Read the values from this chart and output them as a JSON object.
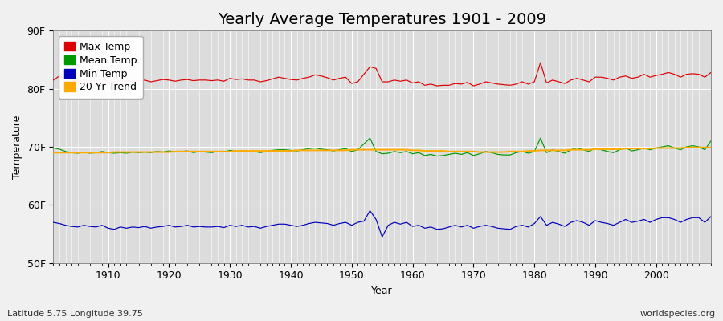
{
  "title": "Yearly Average Temperatures 1901 - 2009",
  "xlabel": "Year",
  "ylabel": "Temperature",
  "footnote_left": "Latitude 5.75 Longitude 39.75",
  "footnote_right": "worldspecies.org",
  "years": [
    1901,
    1902,
    1903,
    1904,
    1905,
    1906,
    1907,
    1908,
    1909,
    1910,
    1911,
    1912,
    1913,
    1914,
    1915,
    1916,
    1917,
    1918,
    1919,
    1920,
    1921,
    1922,
    1923,
    1924,
    1925,
    1926,
    1927,
    1928,
    1929,
    1930,
    1931,
    1932,
    1933,
    1934,
    1935,
    1936,
    1937,
    1938,
    1939,
    1940,
    1941,
    1942,
    1943,
    1944,
    1945,
    1946,
    1947,
    1948,
    1949,
    1950,
    1951,
    1952,
    1953,
    1954,
    1955,
    1956,
    1957,
    1958,
    1959,
    1960,
    1961,
    1962,
    1963,
    1964,
    1965,
    1966,
    1967,
    1968,
    1969,
    1970,
    1971,
    1972,
    1973,
    1974,
    1975,
    1976,
    1977,
    1978,
    1979,
    1980,
    1981,
    1982,
    1983,
    1984,
    1985,
    1986,
    1987,
    1988,
    1989,
    1990,
    1991,
    1992,
    1993,
    1994,
    1995,
    1996,
    1997,
    1998,
    1999,
    2000,
    2001,
    2002,
    2003,
    2004,
    2005,
    2006,
    2007,
    2008,
    2009
  ],
  "max_temp": [
    81.5,
    82.2,
    81.8,
    81.5,
    81.3,
    81.6,
    81.4,
    81.3,
    81.7,
    81.3,
    81.2,
    81.5,
    81.4,
    81.3,
    81.4,
    81.5,
    81.2,
    81.4,
    81.6,
    81.5,
    81.3,
    81.5,
    81.6,
    81.4,
    81.5,
    81.5,
    81.4,
    81.5,
    81.3,
    81.8,
    81.6,
    81.7,
    81.5,
    81.5,
    81.2,
    81.4,
    81.7,
    82.0,
    81.8,
    81.6,
    81.5,
    81.8,
    82.0,
    82.4,
    82.2,
    81.9,
    81.5,
    81.8,
    82.0,
    80.9,
    81.2,
    82.5,
    83.8,
    83.5,
    81.2,
    81.2,
    81.5,
    81.3,
    81.5,
    81.0,
    81.2,
    80.6,
    80.8,
    80.5,
    80.6,
    80.6,
    80.9,
    80.8,
    81.1,
    80.5,
    80.8,
    81.2,
    81.0,
    80.8,
    80.7,
    80.6,
    80.8,
    81.2,
    80.8,
    81.2,
    84.5,
    81.0,
    81.5,
    81.2,
    80.9,
    81.5,
    81.8,
    81.5,
    81.2,
    82.0,
    82.0,
    81.8,
    81.5,
    82.0,
    82.2,
    81.8,
    82.0,
    82.5,
    82.0,
    82.3,
    82.5,
    82.8,
    82.5,
    82.0,
    82.5,
    82.6,
    82.5,
    82.0,
    82.8
  ],
  "mean_temp": [
    69.8,
    69.6,
    69.2,
    69.0,
    68.9,
    69.1,
    68.9,
    69.0,
    69.2,
    69.0,
    68.9,
    69.0,
    68.9,
    69.1,
    69.0,
    69.1,
    69.0,
    69.2,
    69.1,
    69.3,
    69.1,
    69.2,
    69.3,
    69.0,
    69.2,
    69.1,
    69.0,
    69.2,
    69.1,
    69.4,
    69.2,
    69.3,
    69.1,
    69.2,
    69.0,
    69.2,
    69.4,
    69.5,
    69.5,
    69.4,
    69.3,
    69.5,
    69.7,
    69.8,
    69.6,
    69.5,
    69.3,
    69.5,
    69.7,
    69.2,
    69.5,
    70.5,
    71.5,
    69.2,
    68.8,
    68.9,
    69.2,
    69.0,
    69.2,
    68.8,
    69.0,
    68.5,
    68.7,
    68.4,
    68.5,
    68.7,
    68.9,
    68.7,
    69.0,
    68.5,
    68.8,
    69.2,
    69.0,
    68.7,
    68.6,
    68.6,
    69.0,
    69.2,
    68.9,
    69.2,
    71.5,
    69.0,
    69.5,
    69.2,
    68.9,
    69.5,
    69.8,
    69.5,
    69.2,
    69.8,
    69.5,
    69.2,
    69.0,
    69.5,
    69.8,
    69.3,
    69.5,
    69.8,
    69.5,
    69.8,
    70.0,
    70.2,
    69.8,
    69.5,
    70.0,
    70.2,
    70.0,
    69.5,
    71.0
  ],
  "min_temp": [
    57.0,
    56.8,
    56.5,
    56.3,
    56.2,
    56.5,
    56.3,
    56.2,
    56.5,
    56.0,
    55.8,
    56.2,
    56.0,
    56.2,
    56.1,
    56.3,
    56.0,
    56.2,
    56.3,
    56.5,
    56.2,
    56.3,
    56.5,
    56.2,
    56.3,
    56.2,
    56.2,
    56.3,
    56.1,
    56.5,
    56.3,
    56.5,
    56.2,
    56.3,
    56.0,
    56.3,
    56.5,
    56.7,
    56.7,
    56.5,
    56.3,
    56.5,
    56.8,
    57.0,
    56.9,
    56.8,
    56.5,
    56.8,
    57.0,
    56.5,
    57.0,
    57.2,
    59.0,
    57.5,
    54.5,
    56.5,
    57.0,
    56.7,
    57.0,
    56.3,
    56.5,
    56.0,
    56.2,
    55.8,
    55.9,
    56.2,
    56.5,
    56.2,
    56.5,
    56.0,
    56.3,
    56.5,
    56.3,
    56.0,
    55.9,
    55.8,
    56.3,
    56.5,
    56.2,
    56.8,
    58.0,
    56.5,
    57.0,
    56.7,
    56.3,
    57.0,
    57.3,
    57.0,
    56.5,
    57.3,
    57.0,
    56.8,
    56.5,
    57.0,
    57.5,
    57.0,
    57.2,
    57.5,
    57.0,
    57.5,
    57.8,
    57.8,
    57.5,
    57.0,
    57.5,
    57.8,
    57.8,
    57.0,
    58.0
  ],
  "trend_20yr": [
    69.0,
    69.0,
    69.0,
    69.0,
    69.0,
    69.0,
    69.0,
    69.0,
    69.0,
    69.0,
    69.1,
    69.1,
    69.1,
    69.1,
    69.1,
    69.1,
    69.1,
    69.1,
    69.1,
    69.1,
    69.2,
    69.2,
    69.2,
    69.2,
    69.2,
    69.2,
    69.2,
    69.2,
    69.2,
    69.2,
    69.3,
    69.3,
    69.3,
    69.3,
    69.3,
    69.3,
    69.3,
    69.3,
    69.3,
    69.3,
    69.4,
    69.4,
    69.4,
    69.4,
    69.4,
    69.4,
    69.4,
    69.4,
    69.4,
    69.5,
    69.5,
    69.5,
    69.5,
    69.5,
    69.5,
    69.5,
    69.5,
    69.5,
    69.5,
    69.4,
    69.4,
    69.3,
    69.3,
    69.3,
    69.3,
    69.2,
    69.2,
    69.2,
    69.2,
    69.2,
    69.1,
    69.1,
    69.1,
    69.1,
    69.1,
    69.2,
    69.2,
    69.2,
    69.3,
    69.3,
    69.4,
    69.4,
    69.4,
    69.4,
    69.4,
    69.5,
    69.5,
    69.5,
    69.5,
    69.6,
    69.6,
    69.6,
    69.6,
    69.6,
    69.7,
    69.7,
    69.7,
    69.7,
    69.7,
    69.8,
    69.8,
    69.8,
    69.8,
    69.8,
    69.9,
    69.9,
    69.9,
    69.9,
    69.9
  ],
  "ylim": [
    50,
    90
  ],
  "yticks": [
    50,
    60,
    70,
    80,
    90
  ],
  "ytick_labels": [
    "50F",
    "60F",
    "70F",
    "80F",
    "90F"
  ],
  "bg_color": "#f0f0f0",
  "plot_bg_color": "#dcdcdc",
  "grid_color": "#ffffff",
  "max_color": "#dd0000",
  "mean_color": "#009900",
  "min_color": "#0000bb",
  "trend_color": "#ffaa00",
  "legend_labels": [
    "Max Temp",
    "Mean Temp",
    "Min Temp",
    "20 Yr Trend"
  ],
  "title_fontsize": 14,
  "axis_label_fontsize": 9,
  "tick_fontsize": 9,
  "footnote_fontsize": 8
}
